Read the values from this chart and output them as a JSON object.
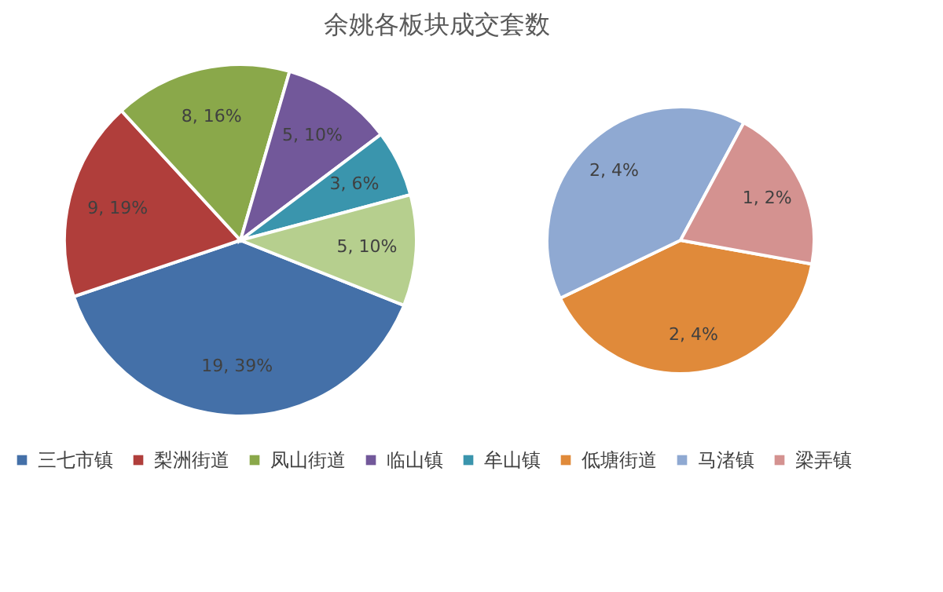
{
  "chart_data": [
    {
      "type": "pie",
      "title": "余姚各板块成交套数",
      "legend": "bottom",
      "categories": [
        "三七市镇",
        "梨洲街道",
        "凤山街道",
        "临山镇",
        "牟山镇",
        null
      ],
      "values": [
        19,
        9,
        8,
        5,
        3,
        5
      ],
      "value_labels": [
        "19, 39%",
        "9, 19%",
        "8, 16%",
        "5, 10%",
        "3, 6%",
        "5, 10%"
      ],
      "colors": [
        "#4470a8",
        "#b03e3b",
        "#8aa84a",
        "#72589a",
        "#3a95ad",
        "#b6cf8e"
      ]
    },
    {
      "type": "pie",
      "legend": "bottom",
      "categories": [
        "低塘街道",
        "马渚镇",
        "梁弄镇"
      ],
      "values": [
        2,
        2,
        1
      ],
      "value_labels": [
        "2, 4%",
        "2, 4%",
        "1, 2%"
      ],
      "colors": [
        "#e08a3a",
        "#8fa9d2",
        "#d49290"
      ]
    }
  ]
}
